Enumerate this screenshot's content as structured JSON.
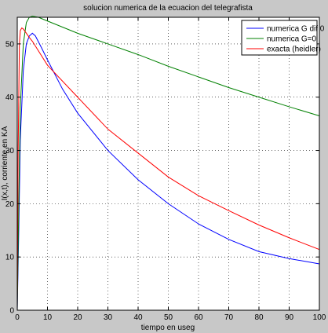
{
  "chart_data": {
    "type": "line",
    "title": "solucion numerica de la ecuacion del telegrafista",
    "xlabel": "tiempo en useg",
    "ylabel": "I(x,t), corriente en KA",
    "xlim": [
      0,
      100
    ],
    "ylim": [
      0,
      55
    ],
    "xticks": [
      0,
      10,
      20,
      30,
      40,
      50,
      60,
      70,
      80,
      90,
      100
    ],
    "yticks": [
      0,
      10,
      20,
      30,
      40,
      50
    ],
    "grid": true,
    "legend_position": "top-right",
    "series": [
      {
        "name": "numerica G dif 0",
        "color": "#0000ff",
        "x": [
          0,
          0.5,
          1,
          2,
          3,
          4,
          5,
          6,
          8,
          10,
          15,
          20,
          30,
          40,
          50,
          60,
          70,
          80,
          90,
          100
        ],
        "y": [
          0,
          15,
          32,
          45,
          50,
          51.5,
          52,
          51.5,
          49.3,
          47,
          41.5,
          37,
          30,
          24.5,
          20,
          16.2,
          13.3,
          11,
          9.7,
          8.7
        ]
      },
      {
        "name": "numerica G=0",
        "color": "#008000",
        "x": [
          0,
          0.5,
          1,
          2,
          3,
          4,
          5,
          7,
          10,
          20,
          30,
          40,
          50,
          60,
          70,
          80,
          90,
          100
        ],
        "y": [
          0,
          20,
          38,
          50,
          54,
          55,
          55.2,
          55,
          54.3,
          52,
          50,
          48,
          45.8,
          43.8,
          41.8,
          40,
          38.2,
          36.5
        ]
      },
      {
        "name": "exacta (heidler)",
        "color": "#ff0000",
        "x": [
          0,
          0.3,
          0.7,
          1,
          1.5,
          2,
          3,
          4,
          5,
          10,
          20,
          30,
          40,
          50,
          60,
          70,
          80,
          90,
          100
        ],
        "y": [
          0,
          30,
          50,
          52.5,
          53,
          52.8,
          52,
          51.2,
          50.5,
          46,
          40,
          34,
          29.5,
          25,
          21.5,
          18.7,
          16,
          13.6,
          11.4
        ]
      }
    ]
  }
}
